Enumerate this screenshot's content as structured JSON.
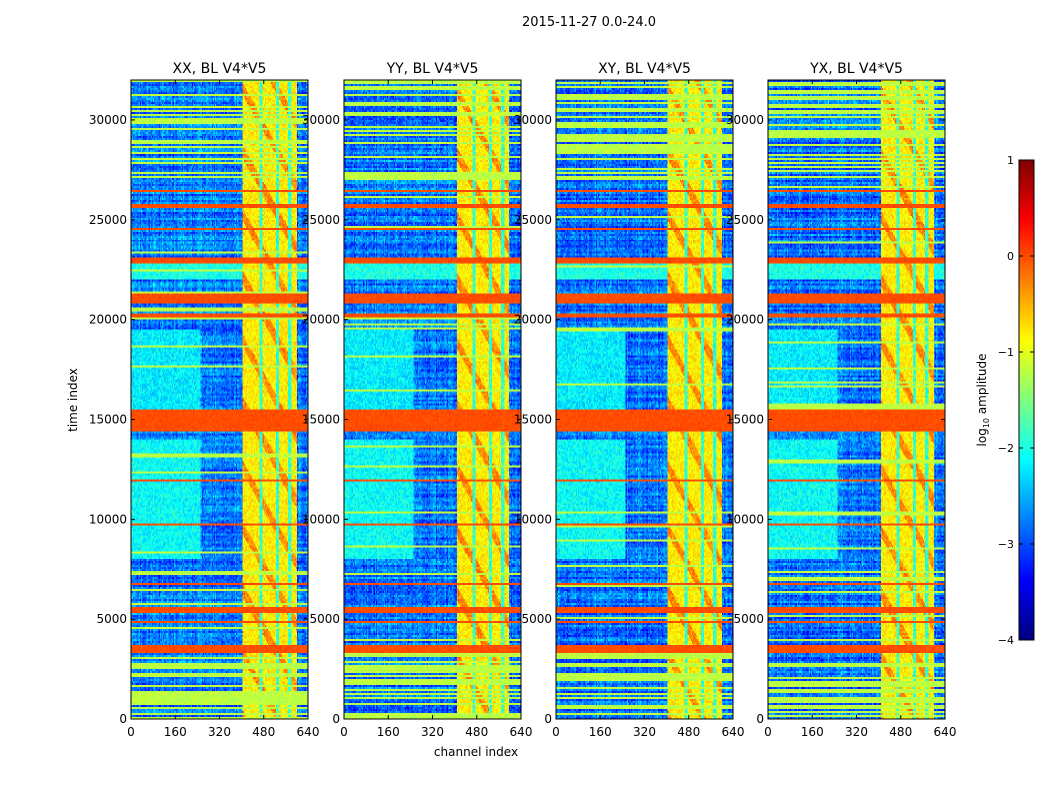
{
  "chart_data": {
    "type": "heatmap",
    "title": "2015-11-27 0.0-24.0",
    "xlabel": "channel index",
    "ylabel": "time index",
    "xlim": [
      0,
      640
    ],
    "ylim": [
      0,
      32000
    ],
    "xticks": [
      0,
      160,
      320,
      480,
      640
    ],
    "yticks": [
      0,
      5000,
      10000,
      15000,
      20000,
      25000,
      30000
    ],
    "colormap": "jet",
    "colorbar": {
      "label_main": "log",
      "label_sub": "10",
      "label_rest": " amplitude",
      "range": [
        -4,
        1
      ],
      "ticks": [
        1,
        0,
        -1,
        -2,
        -3,
        -4
      ],
      "tick_labels": [
        "1",
        "0",
        "−1",
        "−2",
        "−3",
        "−4"
      ]
    },
    "panels": [
      {
        "title": "XX, BL V4*V5",
        "bright_channel_range": [
          405,
          600
        ],
        "seed": 11
      },
      {
        "title": "YY, BL V4*V5",
        "bright_channel_range": [
          408,
          595
        ],
        "seed": 23
      },
      {
        "title": "XY, BL V4*V5",
        "bright_channel_range": [
          405,
          600
        ],
        "seed": 37
      },
      {
        "title": "YX, BL V4*V5",
        "bright_channel_range": [
          408,
          600
        ],
        "seed": 53
      }
    ],
    "background_log_amplitude": -2.8,
    "bright_band_log_amplitude": -0.8,
    "channel_gaps_in_bright_band": [
      470,
      530,
      575
    ],
    "high_amplitude_time_bands": [
      {
        "range": [
          14450,
          15450
        ],
        "value": 0
      },
      {
        "range": [
          20800,
          21300
        ],
        "value": 0
      },
      {
        "range": [
          20150,
          20250
        ],
        "value": 0
      },
      {
        "range": [
          22800,
          23100
        ],
        "value": 0
      },
      {
        "range": [
          24500,
          24600
        ],
        "value": 0
      },
      {
        "range": [
          25650,
          25750
        ],
        "value": 0
      },
      {
        "range": [
          26400,
          26500
        ],
        "value": 0
      },
      {
        "range": [
          9700,
          9800
        ],
        "value": 0
      },
      {
        "range": [
          11900,
          12000
        ],
        "value": 0
      },
      {
        "range": [
          6750,
          6850
        ],
        "value": 0
      },
      {
        "range": [
          5350,
          5600
        ],
        "value": 0
      },
      {
        "range": [
          4800,
          4900
        ],
        "value": 0
      },
      {
        "range": [
          3350,
          3700
        ],
        "value": 0
      }
    ],
    "elevated_regions": [
      {
        "channels": [
          0,
          250
        ],
        "times": [
          8000,
          14000
        ],
        "value": -2.1
      },
      {
        "channels": [
          0,
          250
        ],
        "times": [
          15500,
          19500
        ],
        "value": -2.2
      },
      {
        "channels": [
          0,
          640
        ],
        "times": [
          22000,
          23000
        ],
        "value": -2.0
      }
    ]
  }
}
